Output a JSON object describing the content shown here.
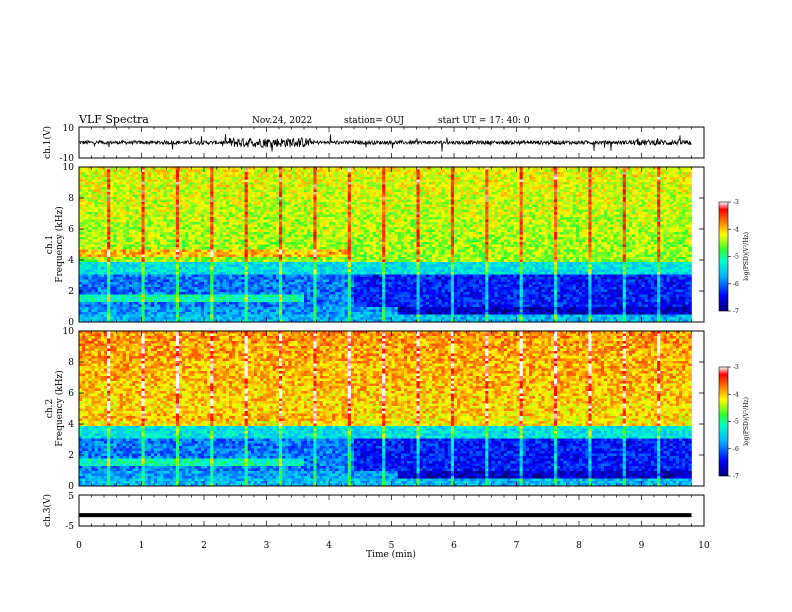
{
  "header": {
    "title": "VLF Spectra",
    "date": "Nov.24, 2022",
    "station": "station= OUJ",
    "start": "start  UT  =   17: 40: 0"
  },
  "chart_data": [
    {
      "type": "line",
      "name": "ch1-waveform",
      "ylabel": "ch.1(V)",
      "ylim": [
        -10,
        10
      ],
      "yticks": [
        "10",
        "-10"
      ],
      "xlim": [
        0,
        10
      ]
    },
    {
      "type": "heatmap",
      "name": "ch1-spectrogram",
      "ylabel": "ch.1\nFrequency (kHz)",
      "ylabel_lines": [
        "ch.1",
        "Frequency (kHz)"
      ],
      "ylim": [
        0,
        10
      ],
      "yticks": [
        "0",
        "2",
        "4",
        "6",
        "8",
        "10"
      ],
      "xlim": [
        0,
        10
      ],
      "data_end_min": 9.8,
      "colorbar": {
        "label": "log(PSD)(V²/Hz)",
        "range": [
          -7,
          -3
        ],
        "ticks": [
          "-3",
          "-4",
          "-5",
          "-6",
          "-7"
        ]
      }
    },
    {
      "type": "heatmap",
      "name": "ch2-spectrogram",
      "ylabel": "ch.2\nFrequency (kHz)",
      "ylabel_lines": [
        "ch.2",
        "Frequency (kHz)"
      ],
      "ylim": [
        0,
        10
      ],
      "yticks": [
        "0",
        "2",
        "4",
        "6",
        "8",
        "10"
      ],
      "xlim": [
        0,
        10
      ],
      "data_end_min": 9.8,
      "colorbar": {
        "label": "log(PSD)(V²/Hz)",
        "range": [
          -7,
          -3
        ],
        "ticks": [
          "-3",
          "-4",
          "-5",
          "-6",
          "-7"
        ]
      }
    },
    {
      "type": "line",
      "name": "ch3-waveform",
      "ylabel": "ch.3(V)",
      "ylim": [
        -5,
        5
      ],
      "yticks": [
        "5",
        "-5"
      ],
      "xlim": [
        0,
        10
      ],
      "constant_value": -1.5,
      "xlabel": "Time  (min)",
      "xticks": [
        "0",
        "1",
        "2",
        "3",
        "4",
        "5",
        "6",
        "7",
        "8",
        "9",
        "10"
      ]
    }
  ]
}
